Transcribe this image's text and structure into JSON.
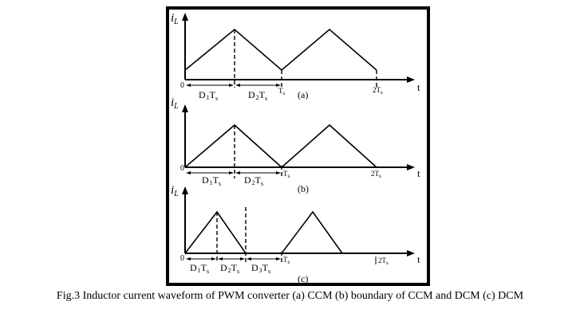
{
  "caption": "Fig.3 Inductor current waveform of PWM converter (a) CCM (b) boundary of CCM and DCM (c) DCM",
  "panels": [
    {
      "id": "a",
      "label": "(a)",
      "y_label": "i",
      "y_label_sub": "L",
      "x_axis_label": "t",
      "origin_label": "0",
      "ts_label": "T",
      "ts_sub": "s",
      "t2s_label": "2T",
      "t2s_sub": "s",
      "intervals": [
        {
          "prefix": "D",
          "index": "1",
          "symbol": "T",
          "sub": "s"
        },
        {
          "prefix": "D",
          "index": "2",
          "symbol": "T",
          "sub": "s"
        }
      ]
    },
    {
      "id": "b",
      "label": "(b)",
      "y_label": "i",
      "y_label_sub": "L",
      "x_axis_label": "t",
      "origin_label": "0",
      "ts_label": "T",
      "ts_sub": "s",
      "t2s_label": "2T",
      "t2s_sub": "s",
      "intervals": [
        {
          "prefix": "D",
          "index": "1",
          "symbol": "T",
          "sub": "s"
        },
        {
          "prefix": "D",
          "index": "2",
          "symbol": "T",
          "sub": "s"
        }
      ]
    },
    {
      "id": "c",
      "label": "(c)",
      "y_label": "i",
      "y_label_sub": "L",
      "x_axis_label": "t",
      "origin_label": "0",
      "ts_label": "T",
      "ts_sub": "s",
      "t2s_label": "2T",
      "t2s_sub": "s",
      "intervals": [
        {
          "prefix": "D",
          "index": "1",
          "symbol": "T",
          "sub": "s"
        },
        {
          "prefix": "D",
          "index": "2",
          "symbol": "T",
          "sub": "s"
        },
        {
          "prefix": "D",
          "index": "3",
          "symbol": "T",
          "sub": "s"
        }
      ]
    }
  ]
}
